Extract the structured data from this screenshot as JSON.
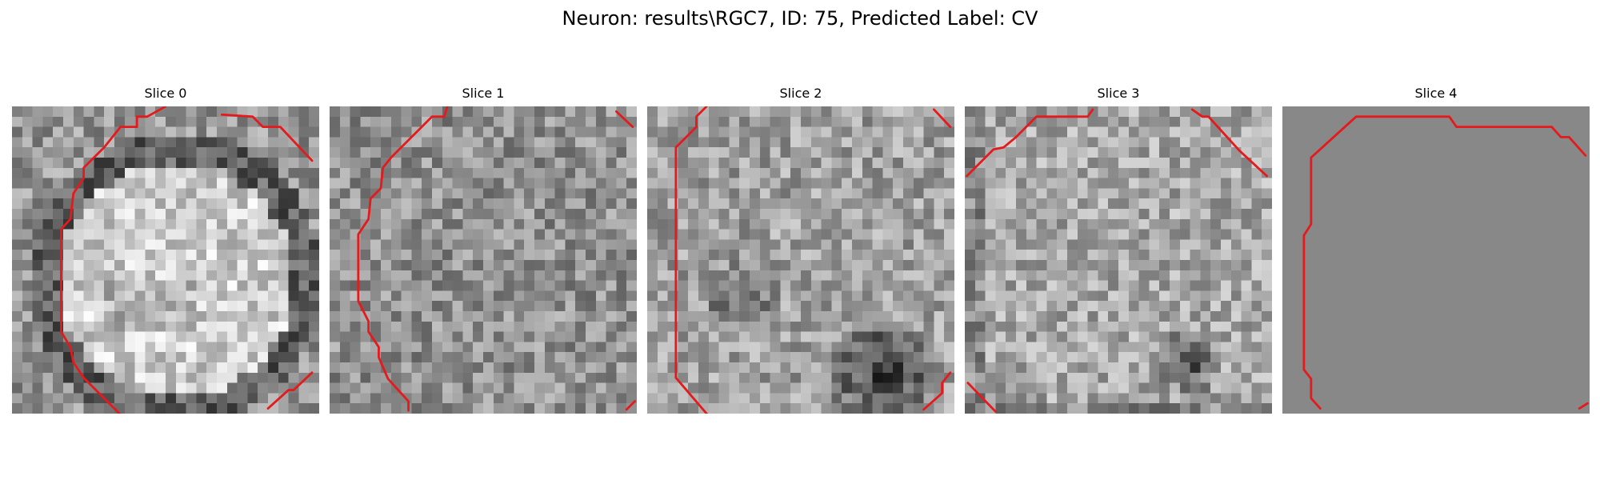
{
  "figure": {
    "title": "Neuron: results\\RGC7, ID: 75, Predicted Label: CV"
  },
  "slices": [
    {
      "label": "Slice 0",
      "seed": 11,
      "profile": "ring"
    },
    {
      "label": "Slice 1",
      "seed": 23,
      "profile": "ring-bright"
    },
    {
      "label": "Slice 2",
      "seed": 37,
      "profile": "noise"
    },
    {
      "label": "Slice 3",
      "seed": 51,
      "profile": "dark-bottom-right"
    },
    {
      "label": "Slice 4",
      "seed": 67,
      "profile": "dark-right"
    }
  ],
  "colors": {
    "contour": "#e41a1c",
    "background": "#ffffff"
  }
}
